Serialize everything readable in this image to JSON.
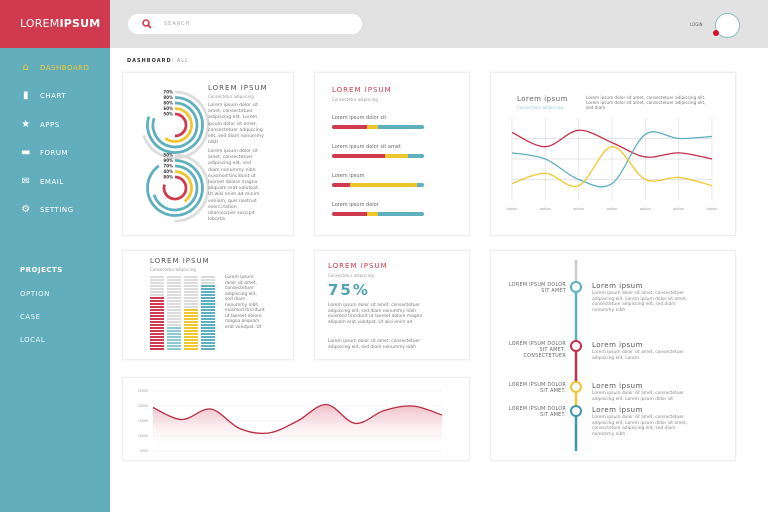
{
  "brand": {
    "light": "LOREM",
    "bold": "IPSUM"
  },
  "search": {
    "placeholder": "SEARCH"
  },
  "header": {
    "login": "LOGIN"
  },
  "breadcrumb": {
    "main": "DASHBOARD",
    "sub": "/ ALL"
  },
  "sidebar": {
    "items": [
      {
        "label": "DASHBOARD",
        "icon": "home-icon",
        "active": true
      },
      {
        "label": "CHART",
        "icon": "bar-chart-icon"
      },
      {
        "label": "APPS",
        "icon": "star-icon"
      },
      {
        "label": "FORUM",
        "icon": "chat-icon"
      },
      {
        "label": "EMAIL",
        "icon": "mail-icon"
      },
      {
        "label": "SETTING",
        "icon": "gear-icon"
      }
    ],
    "projects_title": "PROJECTS",
    "projects": [
      "OPTION",
      "CASE",
      "LOCAL"
    ]
  },
  "colors": {
    "red": "#d03a4e",
    "teal": "#5fb0be",
    "yellow": "#f0c62e",
    "gray": "#dddddd",
    "sidebar": "#62aebd"
  },
  "radial": {
    "title": "LOREM IPSUM",
    "subtitle": "Consectetur adipiscing",
    "text1": "Lorem ipsum dolor sit amet, consectetuer adipiscing elit. Lorem ipsum dolor sit amet, consectetuer adipiscing elit, sed diam nonummy nibh",
    "text2": "Lorem ipsum dolor sit amet, consectetuer adipiscing elit, sed diam nonummy nibh euismod tincidunt ut laoreet dolore magna aliquam erat volutpat. Ut wisi enim ad minim veniam, quis nostrud exerci tation ullamcorper suscipit lobortis",
    "top": [
      70,
      80,
      80,
      60,
      50
    ],
    "bottom": [
      50,
      90,
      70,
      40,
      80
    ]
  },
  "bars": {
    "title": "LOREM IPSUM",
    "subtitle": "Consectetur adipiscing",
    "items": [
      {
        "label": "Lorem ipsum dolor sit",
        "red": 38,
        "yellow": 12,
        "teal": 50
      },
      {
        "label": "Lorem ipsum dolor sit amet",
        "red": 58,
        "yellow": 25,
        "teal": 17
      },
      {
        "label": "Lorem ipsum",
        "red": 20,
        "yellow": 72,
        "teal": 8
      },
      {
        "label": "Lorem ipsum dolor",
        "red": 38,
        "yellow": 12,
        "teal": 50
      }
    ]
  },
  "linechart": {
    "title": "Lorem ipsum",
    "subtitle": "Consectetur adipiscing",
    "text": "Lorem ipsum dolor sit amet, consectetuer adipiscing elit. Lorem ipsum dolor sit amet, consectetuer adipiscing elit, sed diam",
    "chart_data": {
      "type": "line",
      "x": [
        "option",
        "option",
        "option",
        "option",
        "option",
        "option",
        "option"
      ],
      "series": [
        {
          "color": "#c3304a",
          "values": [
            3.3,
            2.6,
            3.4,
            2.8,
            2.1,
            2.3,
            2.0
          ]
        },
        {
          "color": "#5fb0be",
          "values": [
            2.3,
            2.0,
            1.0,
            0.8,
            3.2,
            3.0,
            3.1
          ]
        },
        {
          "color": "#f0c62e",
          "values": [
            0.8,
            1.3,
            0.7,
            2.6,
            1.0,
            1.1,
            0.7
          ]
        }
      ],
      "ylim": [
        0,
        4
      ],
      "grid": true
    }
  },
  "stacked": {
    "title": "LOREM IPSUM",
    "subtitle": "Consectetur adipiscing",
    "text": "Lorem ipsum dolor sit amet, consectetuer adipiscing elit, sed diam nonummy nibh euismod tincidunt ut laoreet dolore magna aliquam erat volutpat. Ut",
    "chart_data": {
      "type": "bar",
      "values": [
        72,
        35,
        58,
        88
      ],
      "ylim": [
        0,
        100
      ],
      "colors": [
        "#d03a4e",
        "#8fcad3",
        "#f0c62e",
        "#5fb0be"
      ]
    }
  },
  "kpi": {
    "title": "LOREM IPSUM",
    "subtitle": "Consectetur adipiscing",
    "value": "75%",
    "text1": "Lorem ipsum dolor sit amet, consectetuer adipiscing elit, sed diam nonummy nibh euismod tincidunt ut laoreet dolore magna aliquam erat volutpat. Ut wisi enim ad",
    "text2": "Lorem ipsum dolor sit amet, consectetuer adipiscing elit, sed diam nonummy nibh"
  },
  "timeline": {
    "items": [
      {
        "left": "LOREM IPSUM DOLOR SIT AMET",
        "title": "Lorem ipsum",
        "text": "Lorem ipsum dolor sit amet, consectetuer adipiscing elit. Lorem ipsum dolor sit amet, consectetuer adipiscing elit, sed diam nonummy nibh",
        "color": "#5fb0be"
      },
      {
        "left": "LOREM IPSUM DOLOR SIT AMET, CONSECTETUER",
        "title": "Lorem ipsum",
        "text": "Lorem ipsum dolor sit amet, consectetuer adipiscing elit. Lorem",
        "color": "#c3304a"
      },
      {
        "left": "LOREM IPSUM DOLOR SIT AMET.",
        "title": "Lorem ipsum",
        "text": "Lorem ipsum dolor sit amet, consectetuer adipiscing elit. Lorem ipsum dolor sit",
        "color": "#f0c62e"
      },
      {
        "left": "LOREM IPSUM DOLOR SIT AMET.",
        "title": "Lorem ipsum",
        "text": "Lorem ipsum dolor sit amet, consectetuer adipiscing elit. Lorem ipsum dolor sit amet, consectetuer adipiscing elit, sed diam nonummy nibh",
        "color": "#3f97ad"
      }
    ]
  },
  "area": {
    "chart_data": {
      "type": "area",
      "yticks": [
        "25000",
        "20000",
        "15000",
        "10000",
        "5000"
      ],
      "ylim": [
        5000,
        25000
      ],
      "values": [
        19500,
        15500,
        19000,
        12500,
        11000,
        15000,
        20500,
        14200,
        18500,
        20000,
        17000
      ],
      "color": "#b82c44"
    }
  }
}
